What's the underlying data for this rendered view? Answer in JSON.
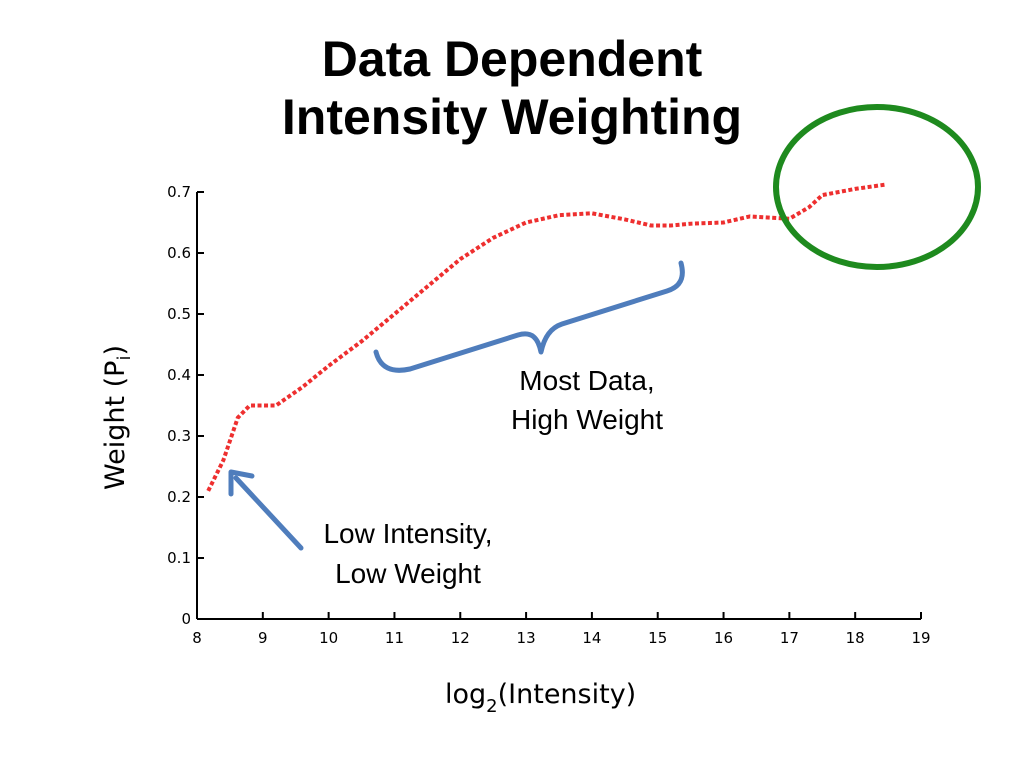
{
  "slide": {
    "title_line1": "Data Dependent",
    "title_line2": "Intensity Weighting"
  },
  "annotations": {
    "high_line1": "Most Data,",
    "high_line2": "High Weight",
    "low_line1": "Low Intensity,",
    "low_line2": "Low Weight"
  },
  "colors": {
    "series": "#ee2f2f",
    "bracket": "#4f7dbc",
    "circle": "#1e8a1e",
    "axis": "#000000"
  },
  "chart_data": {
    "type": "line",
    "xlabel_base": "log",
    "xlabel_sub": "2",
    "xlabel_rest": "(Intensity)",
    "ylabel_main": "Weight (P",
    "ylabel_sub": "i",
    "ylabel_end": ")",
    "xlim": [
      8,
      19
    ],
    "ylim": [
      0,
      0.7
    ],
    "xticks": [
      8,
      9,
      10,
      11,
      12,
      13,
      14,
      15,
      16,
      17,
      18,
      19
    ],
    "yticks": [
      0,
      0.1,
      0.2,
      0.3,
      0.4,
      0.5,
      0.6,
      0.7
    ],
    "series": [
      {
        "x": [
          8.17,
          8.4,
          8.62,
          8.8,
          9.2,
          9.6,
          10.0,
          10.5,
          11.0,
          11.5,
          12.0,
          12.5,
          13.0,
          13.5,
          14.0,
          14.5,
          14.9,
          15.2,
          15.5,
          16.0,
          16.4,
          16.7,
          17.0,
          17.3,
          17.5,
          18.0,
          18.45
        ],
        "y": [
          0.21,
          0.26,
          0.33,
          0.35,
          0.35,
          0.38,
          0.415,
          0.455,
          0.5,
          0.545,
          0.59,
          0.625,
          0.65,
          0.662,
          0.665,
          0.655,
          0.645,
          0.645,
          0.648,
          0.65,
          0.66,
          0.658,
          0.656,
          0.675,
          0.695,
          0.705,
          0.712
        ]
      }
    ]
  }
}
